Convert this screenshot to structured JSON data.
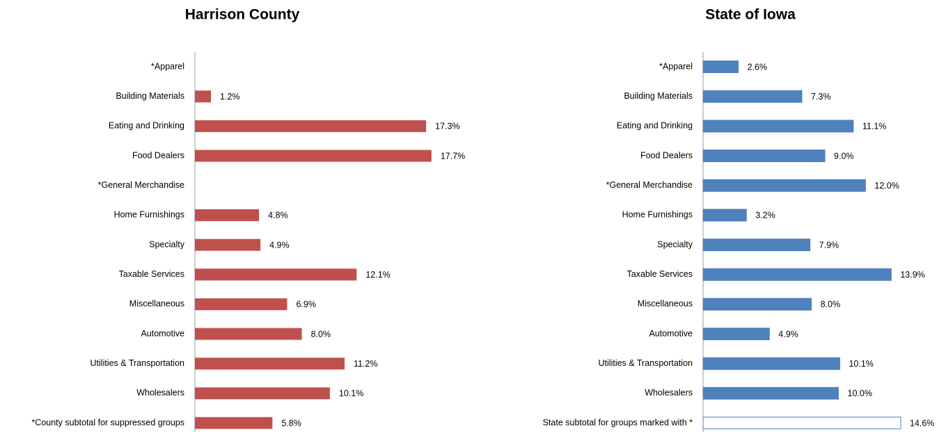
{
  "chart_data": [
    {
      "type": "barh",
      "title": "Harrison County",
      "categories": [
        "*Apparel",
        "Building Materials",
        "Eating and Drinking",
        "Food Dealers",
        "*General Merchandise",
        "Home Furnishings",
        "Specialty",
        "Taxable Services",
        "Miscellaneous",
        "Automotive",
        "Utilities & Transportation",
        "Wholesalers",
        "*County subtotal for suppressed groups"
      ],
      "values": [
        null,
        1.2,
        17.3,
        17.7,
        null,
        4.8,
        4.9,
        12.1,
        6.9,
        8.0,
        11.2,
        10.1,
        5.8
      ],
      "value_labels": [
        null,
        "1.2%",
        "17.3%",
        "17.7%",
        null,
        "4.8%",
        "4.9%",
        "12.1%",
        "6.9%",
        "8.0%",
        "11.2%",
        "10.1%",
        "5.8%"
      ],
      "color": "#c0504d",
      "xlim": [
        0,
        20
      ]
    },
    {
      "type": "barh",
      "title": "State of Iowa",
      "categories": [
        "*Apparel",
        "Building Materials",
        "Eating and Drinking",
        "Food Dealers",
        "*General Merchandise",
        "Home Furnishings",
        "Specialty",
        "Taxable Services",
        "Miscellaneous",
        "Automotive",
        "Utilities & Transportation",
        "Wholesalers",
        "State subtotal for groups marked with *"
      ],
      "values": [
        2.6,
        7.3,
        11.1,
        9.0,
        12.0,
        3.2,
        7.9,
        13.9,
        8.0,
        4.9,
        10.1,
        10.0,
        14.6
      ],
      "value_labels": [
        "2.6%",
        "7.3%",
        "11.1%",
        "9.0%",
        "12.0%",
        "3.2%",
        "7.9%",
        "13.9%",
        "8.0%",
        "4.9%",
        "10.1%",
        "10.0%",
        "14.6%"
      ],
      "colors": [
        "#4f81bd",
        "#4f81bd",
        "#4f81bd",
        "#4f81bd",
        "#4f81bd",
        "#4f81bd",
        "#4f81bd",
        "#4f81bd",
        "#4f81bd",
        "#4f81bd",
        "#4f81bd",
        "#4f81bd",
        "#ffffff"
      ],
      "edgecolor": "#4f81bd",
      "xlim": [
        0,
        20
      ]
    }
  ]
}
